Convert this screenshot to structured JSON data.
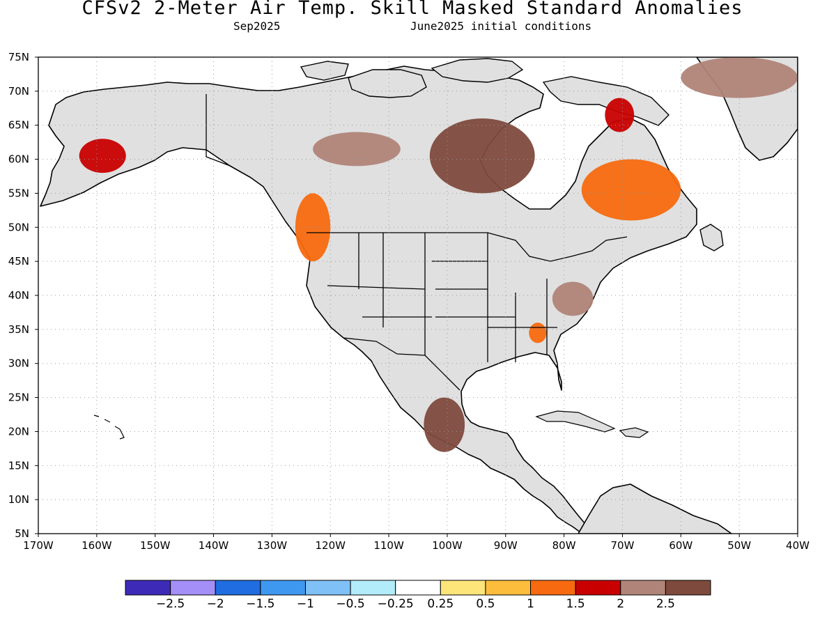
{
  "title": "CFSv2 2-Meter Air Temp. Skill Masked Standard Anomalies",
  "subtitle_left": "Sep2025",
  "subtitle_right": "June2025 initial conditions",
  "map": {
    "lat_range": [
      5,
      75
    ],
    "lon_range": [
      -170,
      -40
    ],
    "land_color": "#e0e0e0",
    "ocean_color": "#ffffff",
    "grid": "dotted"
  },
  "axes": {
    "lat_ticks": [
      "5N",
      "10N",
      "15N",
      "20N",
      "25N",
      "30N",
      "35N",
      "40N",
      "45N",
      "50N",
      "55N",
      "60N",
      "65N",
      "70N",
      "75N"
    ],
    "lon_ticks": [
      "170W",
      "160W",
      "150W",
      "140W",
      "130W",
      "120W",
      "110W",
      "100W",
      "90W",
      "80W",
      "70W",
      "60W",
      "50W",
      "40W"
    ]
  },
  "colorbar": {
    "colors": [
      "#3d2bb8",
      "#a48ef7",
      "#1f6de0",
      "#3f98f0",
      "#7fc0f7",
      "#b2ecfa",
      "#ffffff",
      "#fde57a",
      "#fbbd3b",
      "#f76a0f",
      "#c80000",
      "#b08478",
      "#7e4a3d"
    ],
    "labels": [
      "-2.5",
      "-2",
      "-1.5",
      "-1",
      "-0.5",
      "-0.25",
      "0.25",
      "0.5",
      "1",
      "1.5",
      "2",
      "2.5"
    ]
  },
  "anomaly_regions": [
    {
      "name": "alaska-west",
      "level": "1.5",
      "lon": [
        -163,
        -155
      ],
      "lat": [
        58,
        63
      ]
    },
    {
      "name": "yukon",
      "level": "2",
      "lon": [
        -123,
        -108
      ],
      "lat": [
        59,
        64
      ]
    },
    {
      "name": "hudson-north",
      "level": "2.5",
      "lon": [
        -103,
        -85
      ],
      "lat": [
        55,
        66
      ]
    },
    {
      "name": "quebec",
      "level": "1",
      "lon": [
        -77,
        -60
      ],
      "lat": [
        51,
        60
      ]
    },
    {
      "name": "baffin",
      "level": "1.5",
      "lon": [
        -73,
        -68
      ],
      "lat": [
        64,
        69
      ]
    },
    {
      "name": "greenland-north",
      "level": "2",
      "lon": [
        -60,
        -40
      ],
      "lat": [
        69,
        75
      ]
    },
    {
      "name": "pacific-northwest",
      "level": "1",
      "lon": [
        -126,
        -120
      ],
      "lat": [
        45,
        55
      ]
    },
    {
      "name": "mid-atlantic",
      "level": "2",
      "lon": [
        -82,
        -75
      ],
      "lat": [
        37,
        42
      ]
    },
    {
      "name": "southeast",
      "level": "1",
      "lon": [
        -86,
        -83
      ],
      "lat": [
        33,
        36
      ]
    },
    {
      "name": "mexico-south",
      "level": "2.5",
      "lon": [
        -104,
        -97
      ],
      "lat": [
        17,
        25
      ]
    }
  ]
}
